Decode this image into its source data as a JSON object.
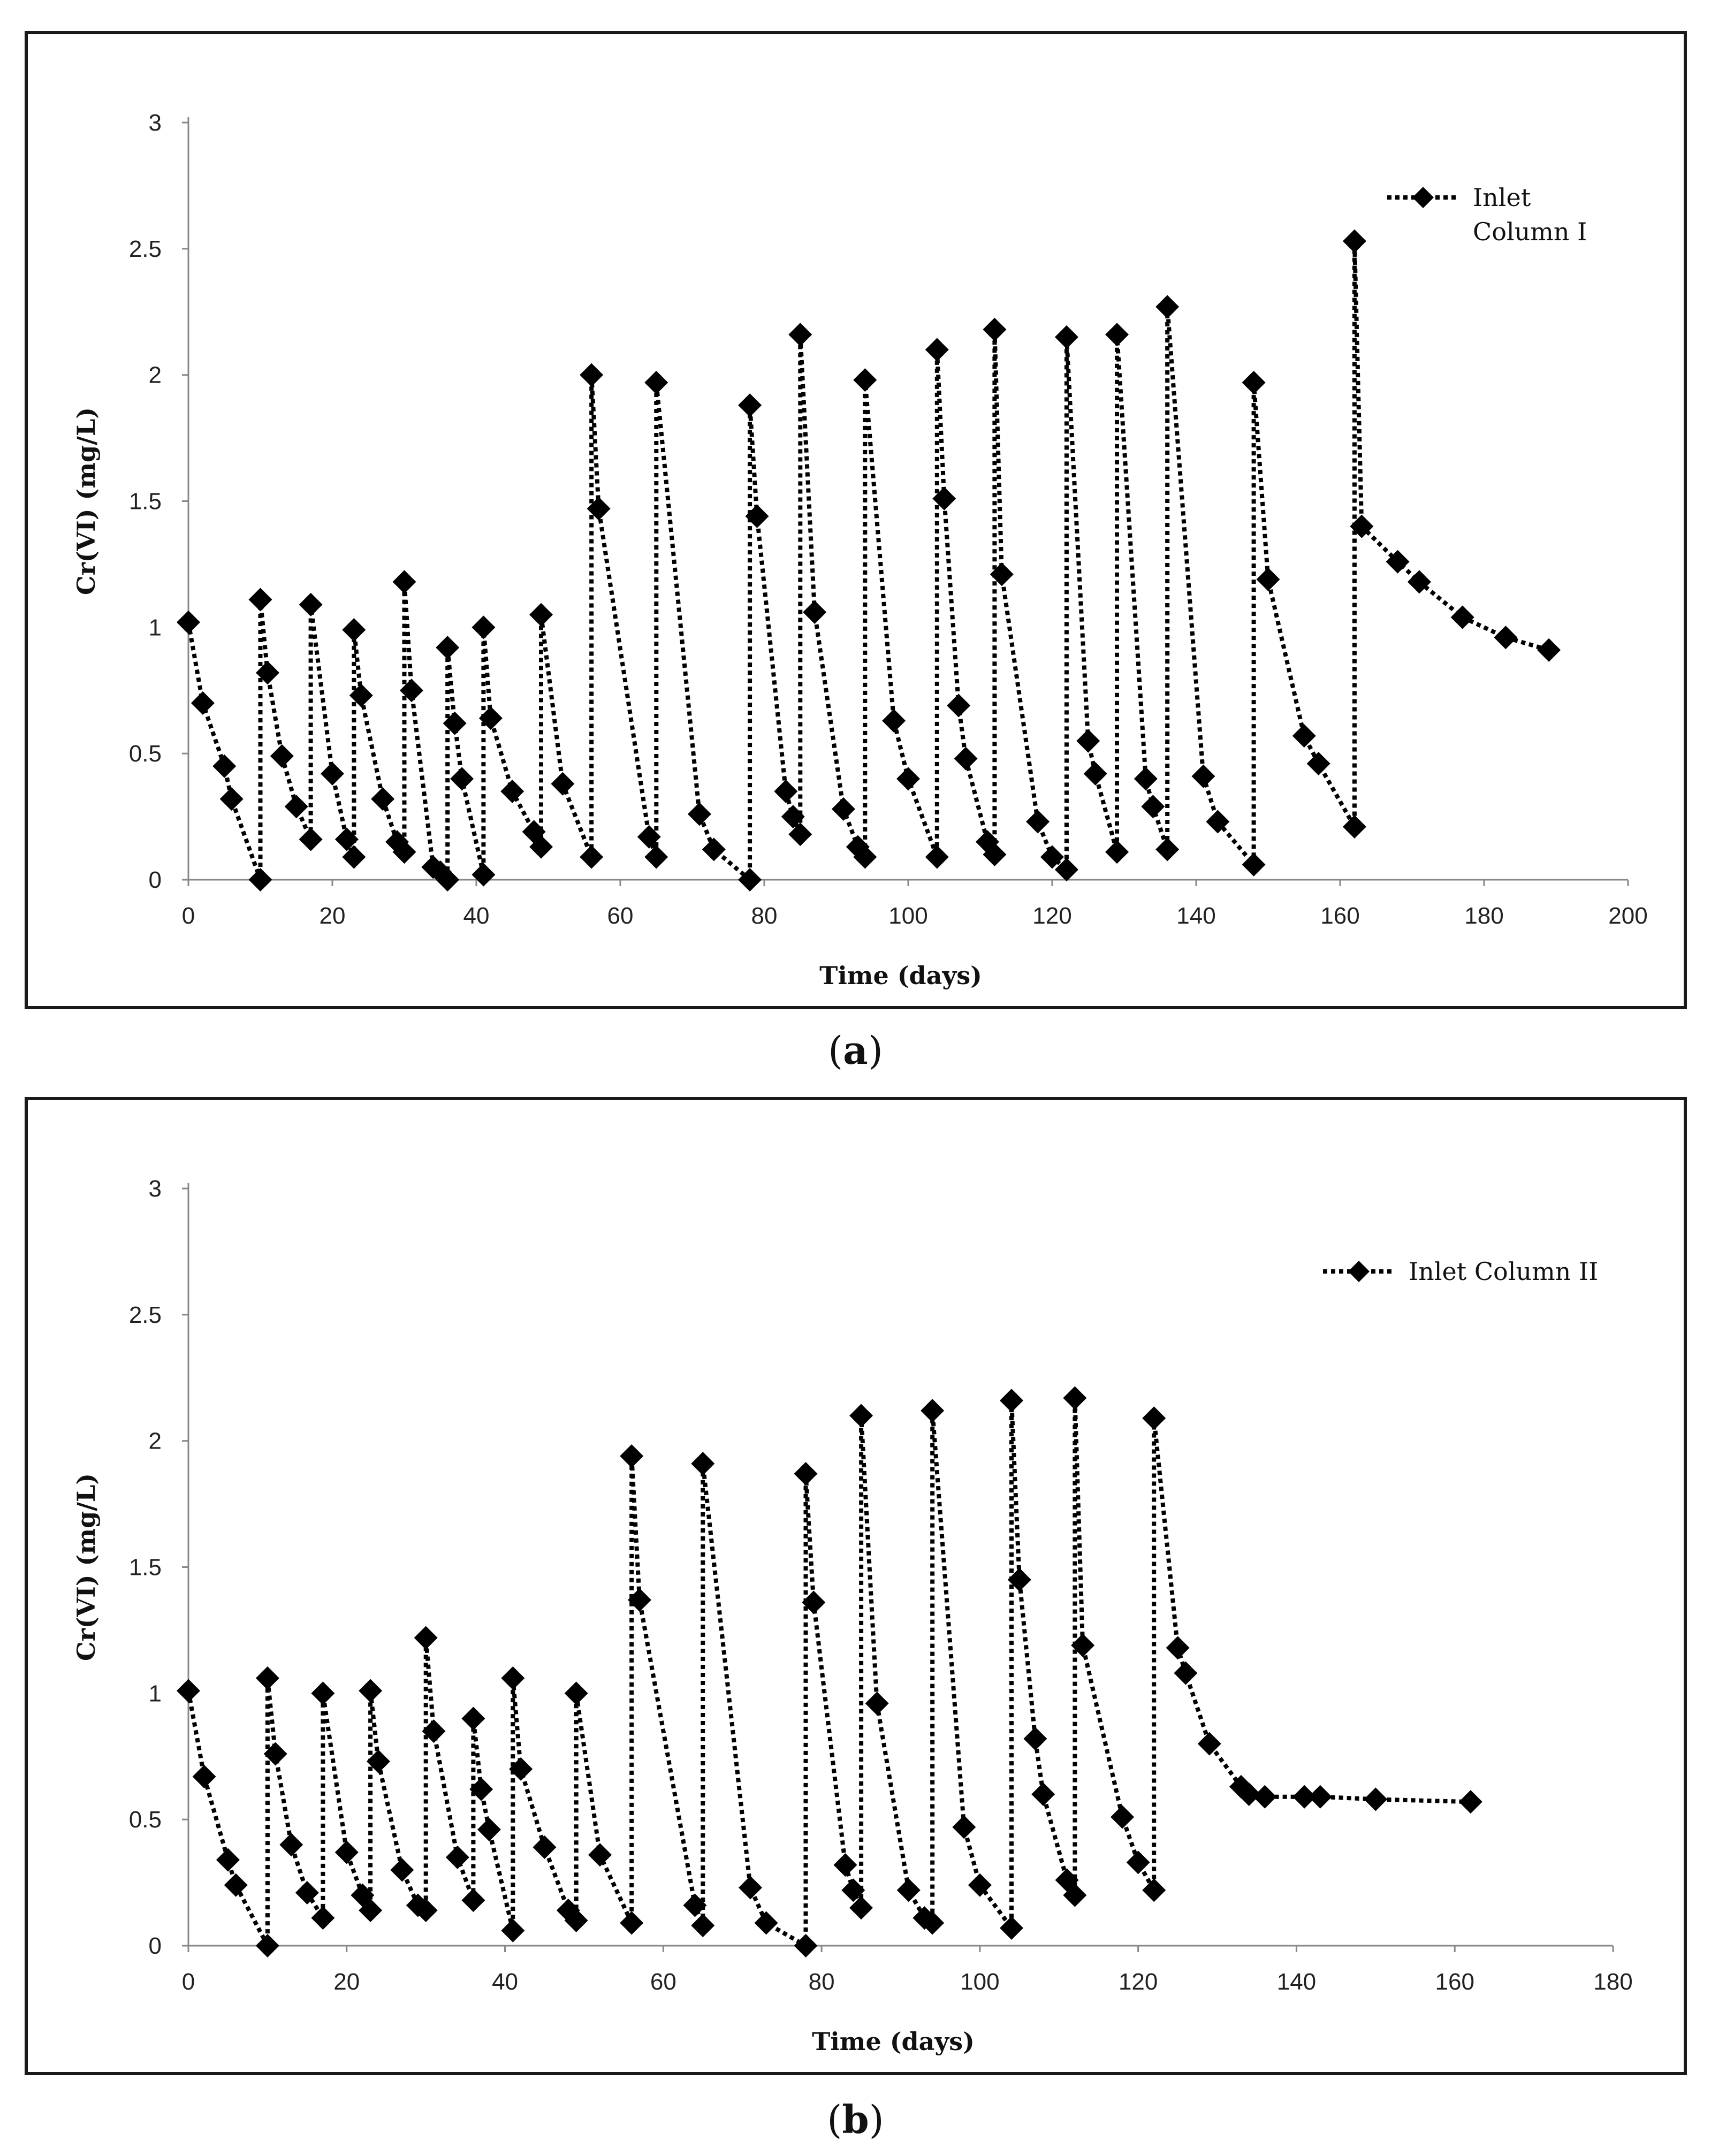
{
  "captions": [
    {
      "open": "(",
      "letter": "a",
      "close": ")"
    },
    {
      "open": "(",
      "letter": "b",
      "close": ")"
    }
  ],
  "chart_data": [
    {
      "type": "line",
      "id": "a",
      "xlabel": "Time (days)",
      "ylabel": "Cr(VI) (mg/L)",
      "xlim": [
        0,
        200
      ],
      "ylim": [
        0,
        3
      ],
      "xticks": [
        0,
        20,
        40,
        60,
        80,
        100,
        120,
        140,
        160,
        180,
        200
      ],
      "yticks": [
        0,
        0.5,
        1,
        1.5,
        2,
        2.5,
        3
      ],
      "ytick_labels": [
        "0",
        "0.5",
        "1",
        "1.5",
        "2",
        "2.5",
        "3"
      ],
      "legend_position": "top-right",
      "series": [
        {
          "name": "Inlet Column I",
          "legend_lines": [
            "Inlet",
            "Column I"
          ],
          "marker": "diamond",
          "line_style": "dotted",
          "x": [
            0,
            2,
            5,
            6,
            10,
            10,
            11,
            13,
            15,
            17,
            17,
            20,
            22,
            23,
            23,
            24,
            27,
            29,
            30,
            30,
            31,
            34,
            35,
            36,
            36,
            37,
            38,
            41,
            41,
            42,
            45,
            48,
            49,
            49,
            52,
            56,
            56,
            57,
            64,
            65,
            65,
            71,
            73,
            78,
            78,
            79,
            83,
            84,
            85,
            85,
            87,
            91,
            93,
            94,
            94,
            98,
            100,
            104,
            104,
            105,
            107,
            108,
            111,
            112,
            112,
            113,
            118,
            120,
            122,
            122,
            125,
            126,
            129,
            129,
            133,
            134,
            136,
            136,
            141,
            143,
            148,
            148,
            150,
            155,
            157,
            162,
            162,
            163,
            168,
            171,
            177,
            183,
            189
          ],
          "y": [
            1.02,
            0.7,
            0.45,
            0.32,
            0.0,
            1.11,
            0.82,
            0.49,
            0.29,
            0.16,
            1.09,
            0.42,
            0.16,
            0.09,
            0.99,
            0.73,
            0.32,
            0.15,
            0.11,
            1.18,
            0.75,
            0.05,
            0.03,
            0.0,
            0.92,
            0.62,
            0.4,
            0.02,
            1.0,
            0.64,
            0.35,
            0.19,
            0.13,
            1.05,
            0.38,
            0.09,
            2.0,
            1.47,
            0.17,
            0.09,
            1.97,
            0.26,
            0.12,
            0.0,
            1.88,
            1.44,
            0.35,
            0.25,
            0.18,
            2.16,
            1.06,
            0.28,
            0.13,
            0.09,
            1.98,
            0.63,
            0.4,
            0.09,
            2.1,
            1.51,
            0.69,
            0.48,
            0.15,
            0.1,
            2.18,
            1.21,
            0.23,
            0.09,
            0.04,
            2.15,
            0.55,
            0.42,
            0.11,
            2.16,
            0.4,
            0.29,
            0.12,
            2.27,
            0.41,
            0.23,
            0.06,
            1.97,
            1.19,
            0.57,
            0.46,
            0.21,
            2.53,
            1.4,
            1.26,
            1.18,
            1.04,
            0.96,
            0.91
          ]
        }
      ]
    },
    {
      "type": "line",
      "id": "b",
      "xlabel": "Time (days)",
      "ylabel": "Cr(VI) (mg/L)",
      "xlim": [
        0,
        180
      ],
      "ylim": [
        0,
        3
      ],
      "xticks": [
        0,
        20,
        40,
        60,
        80,
        100,
        120,
        140,
        160,
        180
      ],
      "yticks": [
        0,
        0.5,
        1,
        1.5,
        2,
        2.5,
        3
      ],
      "ytick_labels": [
        "0",
        "0.5",
        "1",
        "1.5",
        "2",
        "2.5",
        "3"
      ],
      "legend_position": "top-right",
      "series": [
        {
          "name": "Inlet Column II",
          "legend_lines": [
            "Inlet Column II"
          ],
          "marker": "diamond",
          "line_style": "dotted",
          "x": [
            0,
            2,
            5,
            6,
            10,
            10,
            11,
            13,
            15,
            17,
            17,
            20,
            22,
            23,
            23,
            24,
            27,
            29,
            30,
            30,
            31,
            34,
            36,
            36,
            37,
            38,
            41,
            41,
            42,
            45,
            48,
            49,
            49,
            52,
            56,
            56,
            57,
            64,
            65,
            65,
            71,
            73,
            78,
            78,
            79,
            83,
            84,
            85,
            85,
            87,
            91,
            93,
            94,
            94,
            98,
            100,
            104,
            104,
            105,
            107,
            108,
            111,
            112,
            112,
            113,
            118,
            120,
            122,
            122,
            125,
            126,
            129,
            133,
            134,
            136,
            141,
            143,
            150,
            162
          ],
          "y": [
            1.01,
            0.67,
            0.34,
            0.24,
            0.0,
            1.06,
            0.76,
            0.4,
            0.21,
            0.11,
            1.0,
            0.37,
            0.2,
            0.14,
            1.01,
            0.73,
            0.3,
            0.16,
            0.14,
            1.22,
            0.85,
            0.35,
            0.18,
            0.9,
            0.62,
            0.46,
            0.06,
            1.06,
            0.7,
            0.39,
            0.14,
            0.1,
            1.0,
            0.36,
            0.09,
            1.94,
            1.37,
            0.16,
            0.08,
            1.91,
            0.23,
            0.09,
            0.0,
            1.87,
            1.36,
            0.32,
            0.22,
            0.15,
            2.1,
            0.96,
            0.22,
            0.11,
            0.09,
            2.12,
            0.47,
            0.24,
            0.07,
            2.16,
            1.45,
            0.82,
            0.6,
            0.26,
            0.2,
            2.17,
            1.19,
            0.51,
            0.33,
            0.22,
            2.09,
            1.18,
            1.08,
            0.8,
            0.63,
            0.6,
            0.59,
            0.59,
            0.59,
            0.58,
            0.57
          ]
        }
      ]
    }
  ]
}
